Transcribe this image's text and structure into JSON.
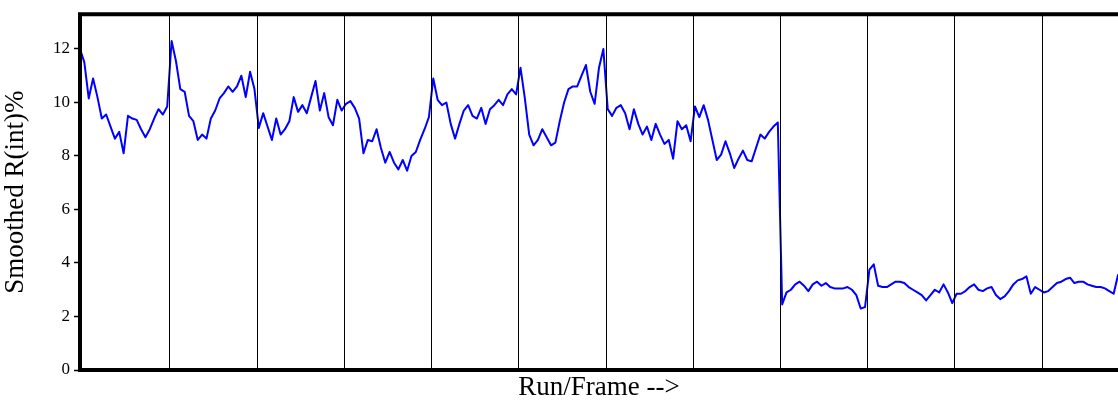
{
  "chart_data": {
    "type": "line",
    "xlabel": "Run/Frame -->",
    "ylabel": "Smoothed R(int)%",
    "ylim": [
      0,
      13.3
    ],
    "yticks": [
      0,
      2,
      4,
      6,
      8,
      10,
      12
    ],
    "tick_labels": "y",
    "grid": false,
    "legend": false,
    "marker": "none",
    "line_style": "solid",
    "categories": [
      null,
      null,
      null,
      null,
      null,
      null,
      null,
      null,
      null,
      null,
      null,
      null,
      null,
      null,
      null,
      null,
      null,
      null,
      null,
      null,
      null,
      null,
      null,
      null,
      null,
      null,
      null,
      null,
      null,
      null,
      null,
      null,
      null,
      null,
      null,
      null,
      null,
      null,
      null,
      null,
      null,
      null,
      null,
      null,
      null,
      null,
      null,
      null,
      null,
      null,
      null,
      null,
      null,
      null,
      null,
      null,
      null,
      null,
      null,
      null,
      null,
      null,
      null,
      null,
      null,
      null,
      null,
      null,
      null,
      null,
      null,
      null,
      null,
      null,
      null,
      null,
      null,
      null,
      null,
      null,
      null,
      null,
      null,
      null,
      null,
      null,
      null,
      null,
      null,
      null,
      null,
      null,
      null,
      null,
      null,
      null,
      null,
      null,
      null,
      null,
      null,
      null,
      null,
      null,
      null,
      null,
      null,
      null,
      null,
      null,
      null,
      null,
      null,
      null,
      null,
      null,
      null,
      null,
      null,
      null,
      null,
      null,
      null,
      null,
      null,
      null,
      null,
      null,
      null,
      null,
      null,
      null,
      null,
      null,
      null,
      null,
      null,
      null,
      null,
      null,
      null,
      null,
      null,
      null,
      null,
      null,
      null,
      null,
      null,
      null,
      null,
      null,
      null,
      null,
      null,
      null,
      null,
      null,
      null,
      null,
      null,
      null,
      null,
      null,
      null,
      null,
      null,
      null,
      null,
      null,
      null,
      null,
      null,
      null,
      null,
      null,
      null,
      null,
      null,
      null,
      null,
      null,
      null,
      null,
      null,
      null,
      null,
      null,
      null,
      null,
      null,
      null,
      null,
      null,
      null,
      null,
      null,
      null,
      null,
      null,
      null,
      null,
      null,
      null,
      null,
      null,
      null,
      null,
      null,
      null,
      null,
      null,
      null,
      null,
      null,
      null,
      null,
      null,
      null,
      null,
      null,
      null,
      null,
      null,
      null,
      null,
      null,
      null,
      null,
      null,
      null,
      null,
      null,
      null,
      null,
      null,
      null,
      null,
      null
    ],
    "series": [
      {
        "color": "#0000ff",
        "values": [
          12.0,
          11.5,
          10.15,
          10.9,
          10.2,
          9.4,
          9.55,
          9.1,
          8.65,
          8.9,
          8.1,
          9.5,
          9.4,
          9.35,
          9.0,
          8.7,
          9.0,
          9.4,
          9.75,
          9.55,
          9.85,
          12.3,
          11.55,
          10.5,
          10.4,
          9.5,
          9.3,
          8.6,
          8.8,
          8.65,
          9.4,
          9.7,
          10.15,
          10.35,
          10.6,
          10.4,
          10.6,
          11.0,
          10.2,
          11.15,
          10.5,
          9.05,
          9.6,
          9.1,
          8.6,
          9.4,
          8.8,
          9.0,
          9.3,
          10.2,
          9.65,
          9.9,
          9.6,
          10.2,
          10.8,
          9.7,
          10.35,
          9.45,
          9.15,
          10.1,
          9.7,
          9.95,
          10.05,
          9.8,
          9.4,
          8.1,
          8.6,
          8.55,
          9.0,
          8.3,
          7.75,
          8.15,
          7.75,
          7.5,
          7.85,
          7.45,
          8.0,
          8.15,
          8.6,
          9.0,
          9.45,
          10.9,
          10.1,
          9.9,
          10.0,
          9.2,
          8.65,
          9.2,
          9.7,
          9.9,
          9.5,
          9.4,
          9.8,
          9.2,
          9.75,
          9.9,
          10.1,
          9.9,
          10.3,
          10.5,
          10.3,
          11.3,
          10.15,
          8.8,
          8.4,
          8.6,
          9.0,
          8.7,
          8.4,
          8.5,
          9.3,
          10.0,
          10.5,
          10.6,
          10.6,
          11.0,
          11.4,
          10.4,
          9.95,
          11.3,
          12.0,
          9.75,
          9.5,
          9.8,
          9.9,
          9.6,
          9.0,
          9.75,
          9.2,
          8.8,
          9.1,
          8.6,
          9.2,
          8.8,
          8.45,
          8.6,
          7.9,
          9.3,
          9.0,
          9.15,
          8.55,
          9.85,
          9.45,
          9.9,
          9.35,
          8.6,
          7.85,
          8.05,
          8.55,
          8.1,
          7.55,
          7.9,
          8.2,
          7.85,
          7.8,
          8.3,
          8.8,
          8.65,
          8.9,
          9.1,
          9.25,
          2.45,
          2.9,
          3.0,
          3.2,
          3.3,
          3.15,
          2.95,
          3.2,
          3.3,
          3.15,
          3.25,
          3.1,
          3.05,
          3.05,
          3.05,
          3.1,
          3.0,
          2.8,
          2.3,
          2.35,
          3.75,
          3.95,
          3.15,
          3.1,
          3.1,
          3.2,
          3.3,
          3.3,
          3.25,
          3.1,
          3.0,
          2.9,
          2.8,
          2.6,
          2.8,
          3.0,
          2.9,
          3.2,
          2.9,
          2.5,
          2.85,
          2.85,
          2.95,
          3.1,
          3.2,
          3.0,
          2.95,
          3.05,
          3.1,
          2.8,
          2.65,
          2.75,
          2.95,
          3.2,
          3.35,
          3.4,
          3.5,
          2.85,
          3.1,
          3.0,
          2.9,
          2.95,
          3.1,
          3.25,
          3.3,
          3.4,
          3.45,
          3.25,
          3.3,
          3.3,
          3.2,
          3.15,
          3.1,
          3.1,
          3.05,
          2.95,
          2.85,
          3.55
        ]
      }
    ]
  }
}
